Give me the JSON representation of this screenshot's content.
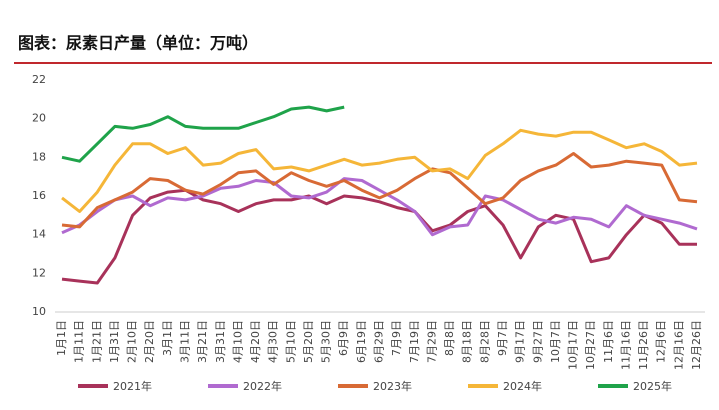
{
  "chart_data": {
    "type": "line",
    "title": "图表：尿素日产量（单位：万吨）",
    "categories": [
      "1月1日",
      "1月11日",
      "1月21日",
      "1月31日",
      "2月10日",
      "2月20日",
      "3月1日",
      "3月11日",
      "3月21日",
      "3月31日",
      "4月10日",
      "4月20日",
      "4月30日",
      "5月10日",
      "5月20日",
      "5月30日",
      "6月9日",
      "6月19日",
      "6月29日",
      "7月9日",
      "7月19日",
      "7月29日",
      "8月8日",
      "8月18日",
      "8月28日",
      "9月7日",
      "9月17日",
      "9月27日",
      "10月7日",
      "10月17日",
      "10月27日",
      "11月6日",
      "11月16日",
      "11月26日",
      "12月6日",
      "12月16日",
      "12月26日"
    ],
    "series": [
      {
        "name": "2021年",
        "color": "#a8325a",
        "values": [
          11.7,
          11.6,
          11.5,
          12.8,
          15.0,
          15.9,
          16.2,
          16.3,
          15.8,
          15.6,
          15.2,
          15.6,
          15.8,
          15.8,
          16.0,
          15.6,
          16.0,
          15.9,
          15.7,
          15.4,
          15.2,
          14.2,
          14.5,
          15.2,
          15.5,
          14.5,
          12.8,
          14.4,
          15.0,
          14.8,
          12.6,
          12.8,
          14.0,
          15.0,
          14.6,
          13.5,
          13.5
        ]
      },
      {
        "name": "2022年",
        "color": "#b06ad0",
        "values": [
          14.1,
          14.5,
          15.2,
          15.8,
          16.0,
          15.5,
          15.9,
          15.8,
          16.0,
          16.4,
          16.5,
          16.8,
          16.7,
          16.0,
          15.9,
          16.2,
          16.9,
          16.8,
          16.3,
          15.8,
          15.2,
          14.0,
          14.4,
          14.5,
          16.0,
          15.8,
          15.3,
          14.8,
          14.6,
          14.9,
          14.8,
          14.4,
          15.5,
          15.0,
          14.8,
          14.6,
          14.3
        ]
      },
      {
        "name": "2023年",
        "color": "#d86a35",
        "values": [
          14.5,
          14.4,
          15.4,
          15.8,
          16.2,
          16.9,
          16.8,
          16.3,
          16.1,
          16.6,
          17.2,
          17.3,
          16.6,
          17.2,
          16.8,
          16.5,
          16.8,
          16.3,
          15.9,
          16.3,
          16.9,
          17.4,
          17.2,
          16.4,
          15.6,
          15.9,
          16.8,
          17.3,
          17.6,
          18.2,
          17.5,
          17.6,
          17.8,
          17.7,
          17.6,
          15.8,
          15.7
        ]
      },
      {
        "name": "2024年",
        "color": "#f5b638",
        "values": [
          15.9,
          15.2,
          16.2,
          17.6,
          18.7,
          18.7,
          18.2,
          18.5,
          17.6,
          17.7,
          18.2,
          18.4,
          17.4,
          17.5,
          17.3,
          17.6,
          17.9,
          17.6,
          17.7,
          17.9,
          18.0,
          17.3,
          17.4,
          16.9,
          18.1,
          18.7,
          19.4,
          19.2,
          19.1,
          19.3,
          19.3,
          18.9,
          18.5,
          18.7,
          18.3,
          17.6,
          17.7
        ]
      },
      {
        "name": "2025年",
        "color": "#1fa34a",
        "values": [
          18.0,
          17.8,
          18.7,
          19.6,
          19.5,
          19.7,
          20.1,
          19.6,
          19.5,
          19.5,
          19.5,
          19.8,
          20.1,
          20.5,
          20.6,
          20.4,
          20.6,
          null,
          null,
          null,
          null,
          null,
          null,
          null,
          null,
          null,
          null,
          null,
          null,
          null,
          null,
          null,
          null,
          null,
          null,
          null,
          null
        ]
      }
    ],
    "ylim": [
      10,
      22
    ],
    "yticks": [
      10,
      12,
      14,
      16,
      18,
      20,
      22
    ]
  }
}
